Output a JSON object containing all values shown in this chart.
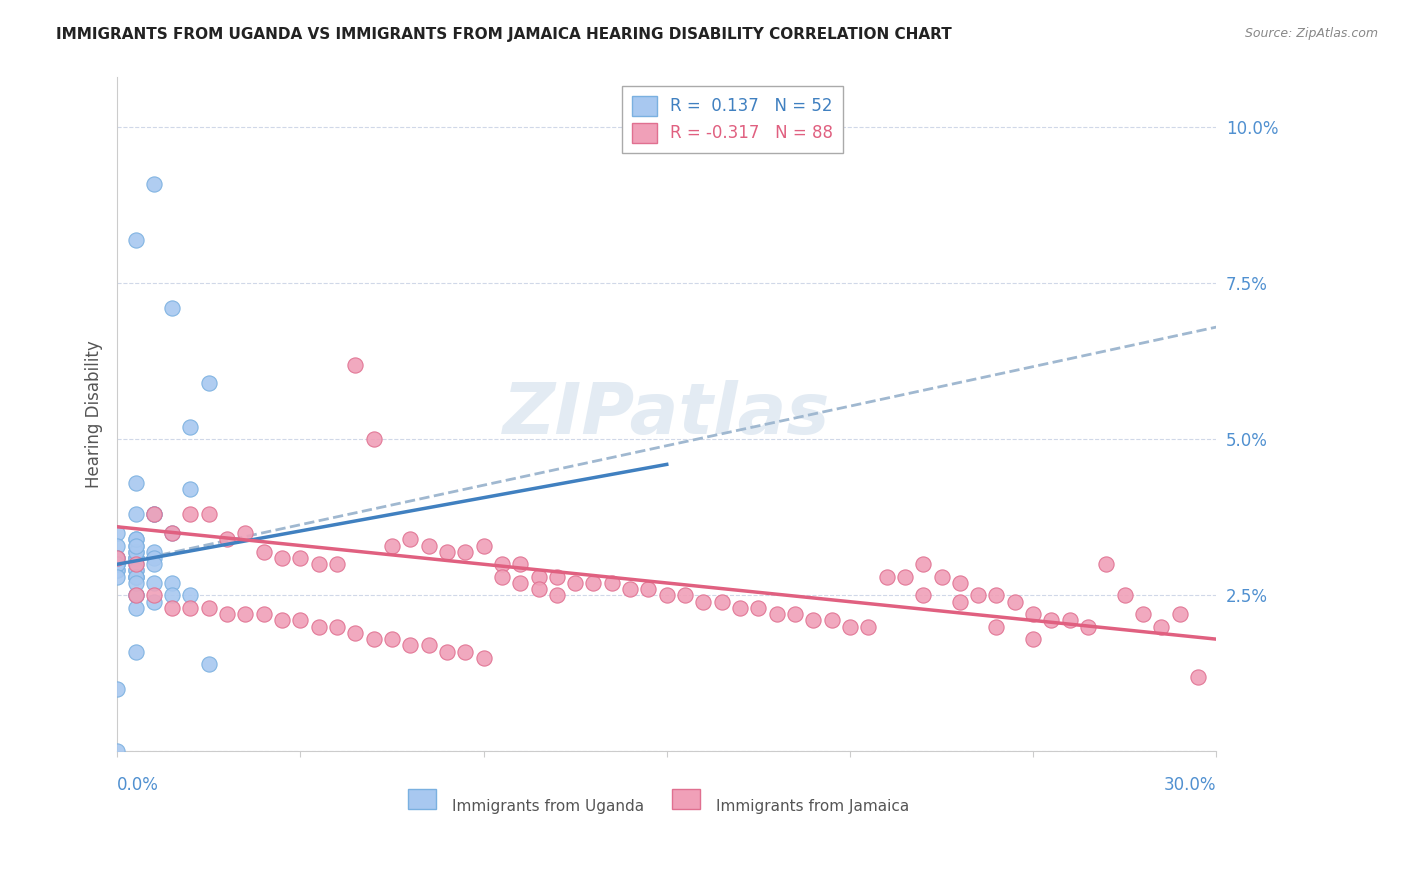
{
  "title": "IMMIGRANTS FROM UGANDA VS IMMIGRANTS FROM JAMAICA HEARING DISABILITY CORRELATION CHART",
  "source": "Source: ZipAtlas.com",
  "ylabel": "Hearing Disability",
  "yticks": [
    0.0,
    0.025,
    0.05,
    0.075,
    0.1
  ],
  "ytick_labels": [
    "",
    "2.5%",
    "5.0%",
    "7.5%",
    "10.0%"
  ],
  "xmin": 0.0,
  "xmax": 0.3,
  "ymin": 0.0,
  "ymax": 0.108,
  "legend_label_uganda": "R =  0.137   N = 52",
  "legend_label_jamaica": "R = -0.317   N = 88",
  "watermark": "ZIPatlas",
  "uganda_color": "#a8c8f0",
  "jamaica_color": "#f0a0b8",
  "uganda_edge": "#7ab0e0",
  "jamaica_edge": "#e07090",
  "trend_uganda_color": "#4080c0",
  "trend_jamaica_color": "#e06080",
  "dashed_color": "#a0b8d0",
  "uganda_points_x": [
    0.005,
    0.01,
    0.015,
    0.02,
    0.025,
    0.0,
    0.005,
    0.01,
    0.015,
    0.005,
    0.01,
    0.02,
    0.005,
    0.0,
    0.005,
    0.0,
    0.005,
    0.005,
    0.01,
    0.01,
    0.0,
    0.005,
    0.005,
    0.0,
    0.005,
    0.005,
    0.005,
    0.0,
    0.005,
    0.0,
    0.0,
    0.005,
    0.0,
    0.005,
    0.01,
    0.005,
    0.0,
    0.005,
    0.0,
    0.01,
    0.015,
    0.005,
    0.005,
    0.01,
    0.015,
    0.02,
    0.005,
    0.005,
    0.0,
    0.005,
    0.025,
    0.005
  ],
  "uganda_points_y": [
    0.082,
    0.091,
    0.071,
    0.052,
    0.059,
    0.0,
    0.043,
    0.038,
    0.035,
    0.031,
    0.032,
    0.042,
    0.028,
    0.035,
    0.033,
    0.033,
    0.031,
    0.031,
    0.031,
    0.03,
    0.03,
    0.03,
    0.032,
    0.03,
    0.032,
    0.029,
    0.029,
    0.029,
    0.034,
    0.031,
    0.029,
    0.034,
    0.031,
    0.038,
    0.038,
    0.028,
    0.03,
    0.028,
    0.028,
    0.027,
    0.027,
    0.025,
    0.025,
    0.024,
    0.025,
    0.025,
    0.023,
    0.016,
    0.01,
    0.027,
    0.014,
    0.033
  ],
  "jamaica_points_x": [
    0.0,
    0.005,
    0.01,
    0.015,
    0.02,
    0.025,
    0.03,
    0.035,
    0.04,
    0.045,
    0.05,
    0.055,
    0.06,
    0.065,
    0.07,
    0.075,
    0.08,
    0.085,
    0.09,
    0.095,
    0.1,
    0.105,
    0.11,
    0.115,
    0.12,
    0.125,
    0.13,
    0.135,
    0.14,
    0.145,
    0.15,
    0.155,
    0.16,
    0.165,
    0.17,
    0.175,
    0.18,
    0.185,
    0.19,
    0.195,
    0.2,
    0.205,
    0.21,
    0.215,
    0.22,
    0.225,
    0.23,
    0.235,
    0.24,
    0.245,
    0.25,
    0.255,
    0.26,
    0.265,
    0.27,
    0.275,
    0.28,
    0.285,
    0.29,
    0.295,
    0.22,
    0.23,
    0.24,
    0.25,
    0.005,
    0.01,
    0.015,
    0.02,
    0.025,
    0.03,
    0.035,
    0.04,
    0.045,
    0.05,
    0.055,
    0.06,
    0.065,
    0.07,
    0.075,
    0.08,
    0.085,
    0.09,
    0.095,
    0.1,
    0.105,
    0.11,
    0.115,
    0.12
  ],
  "jamaica_points_y": [
    0.031,
    0.03,
    0.038,
    0.035,
    0.038,
    0.038,
    0.034,
    0.035,
    0.032,
    0.031,
    0.031,
    0.03,
    0.03,
    0.062,
    0.05,
    0.033,
    0.034,
    0.033,
    0.032,
    0.032,
    0.033,
    0.03,
    0.03,
    0.028,
    0.028,
    0.027,
    0.027,
    0.027,
    0.026,
    0.026,
    0.025,
    0.025,
    0.024,
    0.024,
    0.023,
    0.023,
    0.022,
    0.022,
    0.021,
    0.021,
    0.02,
    0.02,
    0.028,
    0.028,
    0.03,
    0.028,
    0.027,
    0.025,
    0.025,
    0.024,
    0.022,
    0.021,
    0.021,
    0.02,
    0.03,
    0.025,
    0.022,
    0.02,
    0.022,
    0.012,
    0.025,
    0.024,
    0.02,
    0.018,
    0.025,
    0.025,
    0.023,
    0.023,
    0.023,
    0.022,
    0.022,
    0.022,
    0.021,
    0.021,
    0.02,
    0.02,
    0.019,
    0.018,
    0.018,
    0.017,
    0.017,
    0.016,
    0.016,
    0.015,
    0.028,
    0.027,
    0.026,
    0.025
  ],
  "uganda_trend_x": [
    0.0,
    0.15
  ],
  "uganda_trend_y": [
    0.03,
    0.046
  ],
  "dashed_trend_x": [
    0.0,
    0.3
  ],
  "dashed_trend_y": [
    0.03,
    0.068
  ],
  "jamaica_trend_x": [
    0.0,
    0.3
  ],
  "jamaica_trend_y": [
    0.036,
    0.018
  ],
  "title_fontsize": 11,
  "axis_color": "#5090d0",
  "grid_color": "#d0d8e8",
  "legend_bottom_uganda": "Immigrants from Uganda",
  "legend_bottom_jamaica": "Immigrants from Jamaica"
}
